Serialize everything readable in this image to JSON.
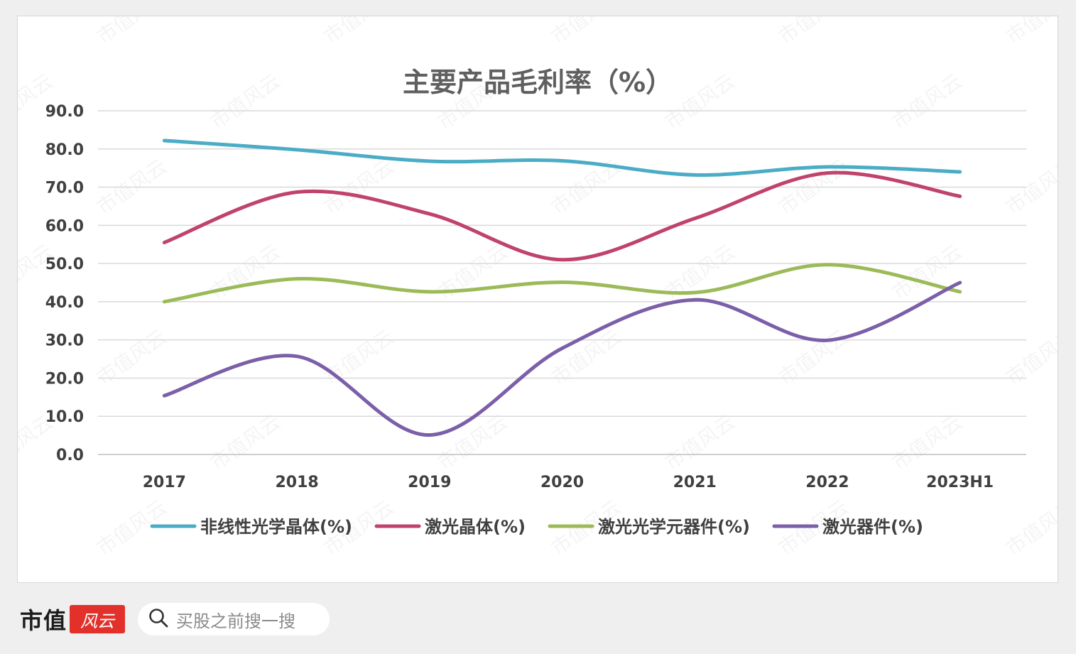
{
  "chart_data": {
    "type": "line",
    "title": "主要产品毛利率（%）",
    "categories": [
      "2017",
      "2018",
      "2019",
      "2020",
      "2021",
      "2022",
      "2023H1"
    ],
    "ylim": [
      0,
      90
    ],
    "yticks": [
      "0.0",
      "10.0",
      "20.0",
      "30.0",
      "40.0",
      "50.0",
      "60.0",
      "70.0",
      "80.0",
      "90.0"
    ],
    "grid": true,
    "legend_position": "bottom",
    "smooth": true,
    "series": [
      {
        "name": "非线性光学晶体(%)",
        "color": "#4bacc6",
        "values": [
          82.2,
          79.8,
          76.8,
          76.9,
          73.2,
          75.3,
          74.0
        ]
      },
      {
        "name": "激光晶体(%)",
        "color": "#c0436b",
        "values": [
          55.5,
          68.7,
          63.0,
          51.0,
          61.8,
          73.7,
          67.6
        ]
      },
      {
        "name": "激光光学元器件(%)",
        "color": "#9bbb59",
        "values": [
          40.0,
          46.0,
          42.6,
          45.1,
          42.4,
          49.7,
          42.6
        ]
      },
      {
        "name": "激光器件(%)",
        "color": "#7b5fa8",
        "values": [
          15.4,
          25.7,
          5.1,
          27.8,
          40.5,
          29.9,
          45.0
        ]
      }
    ]
  },
  "watermark": "市值风云",
  "footer": {
    "brand": "市值",
    "brand_seal": "风云",
    "search_placeholder": "买股之前搜一搜"
  }
}
